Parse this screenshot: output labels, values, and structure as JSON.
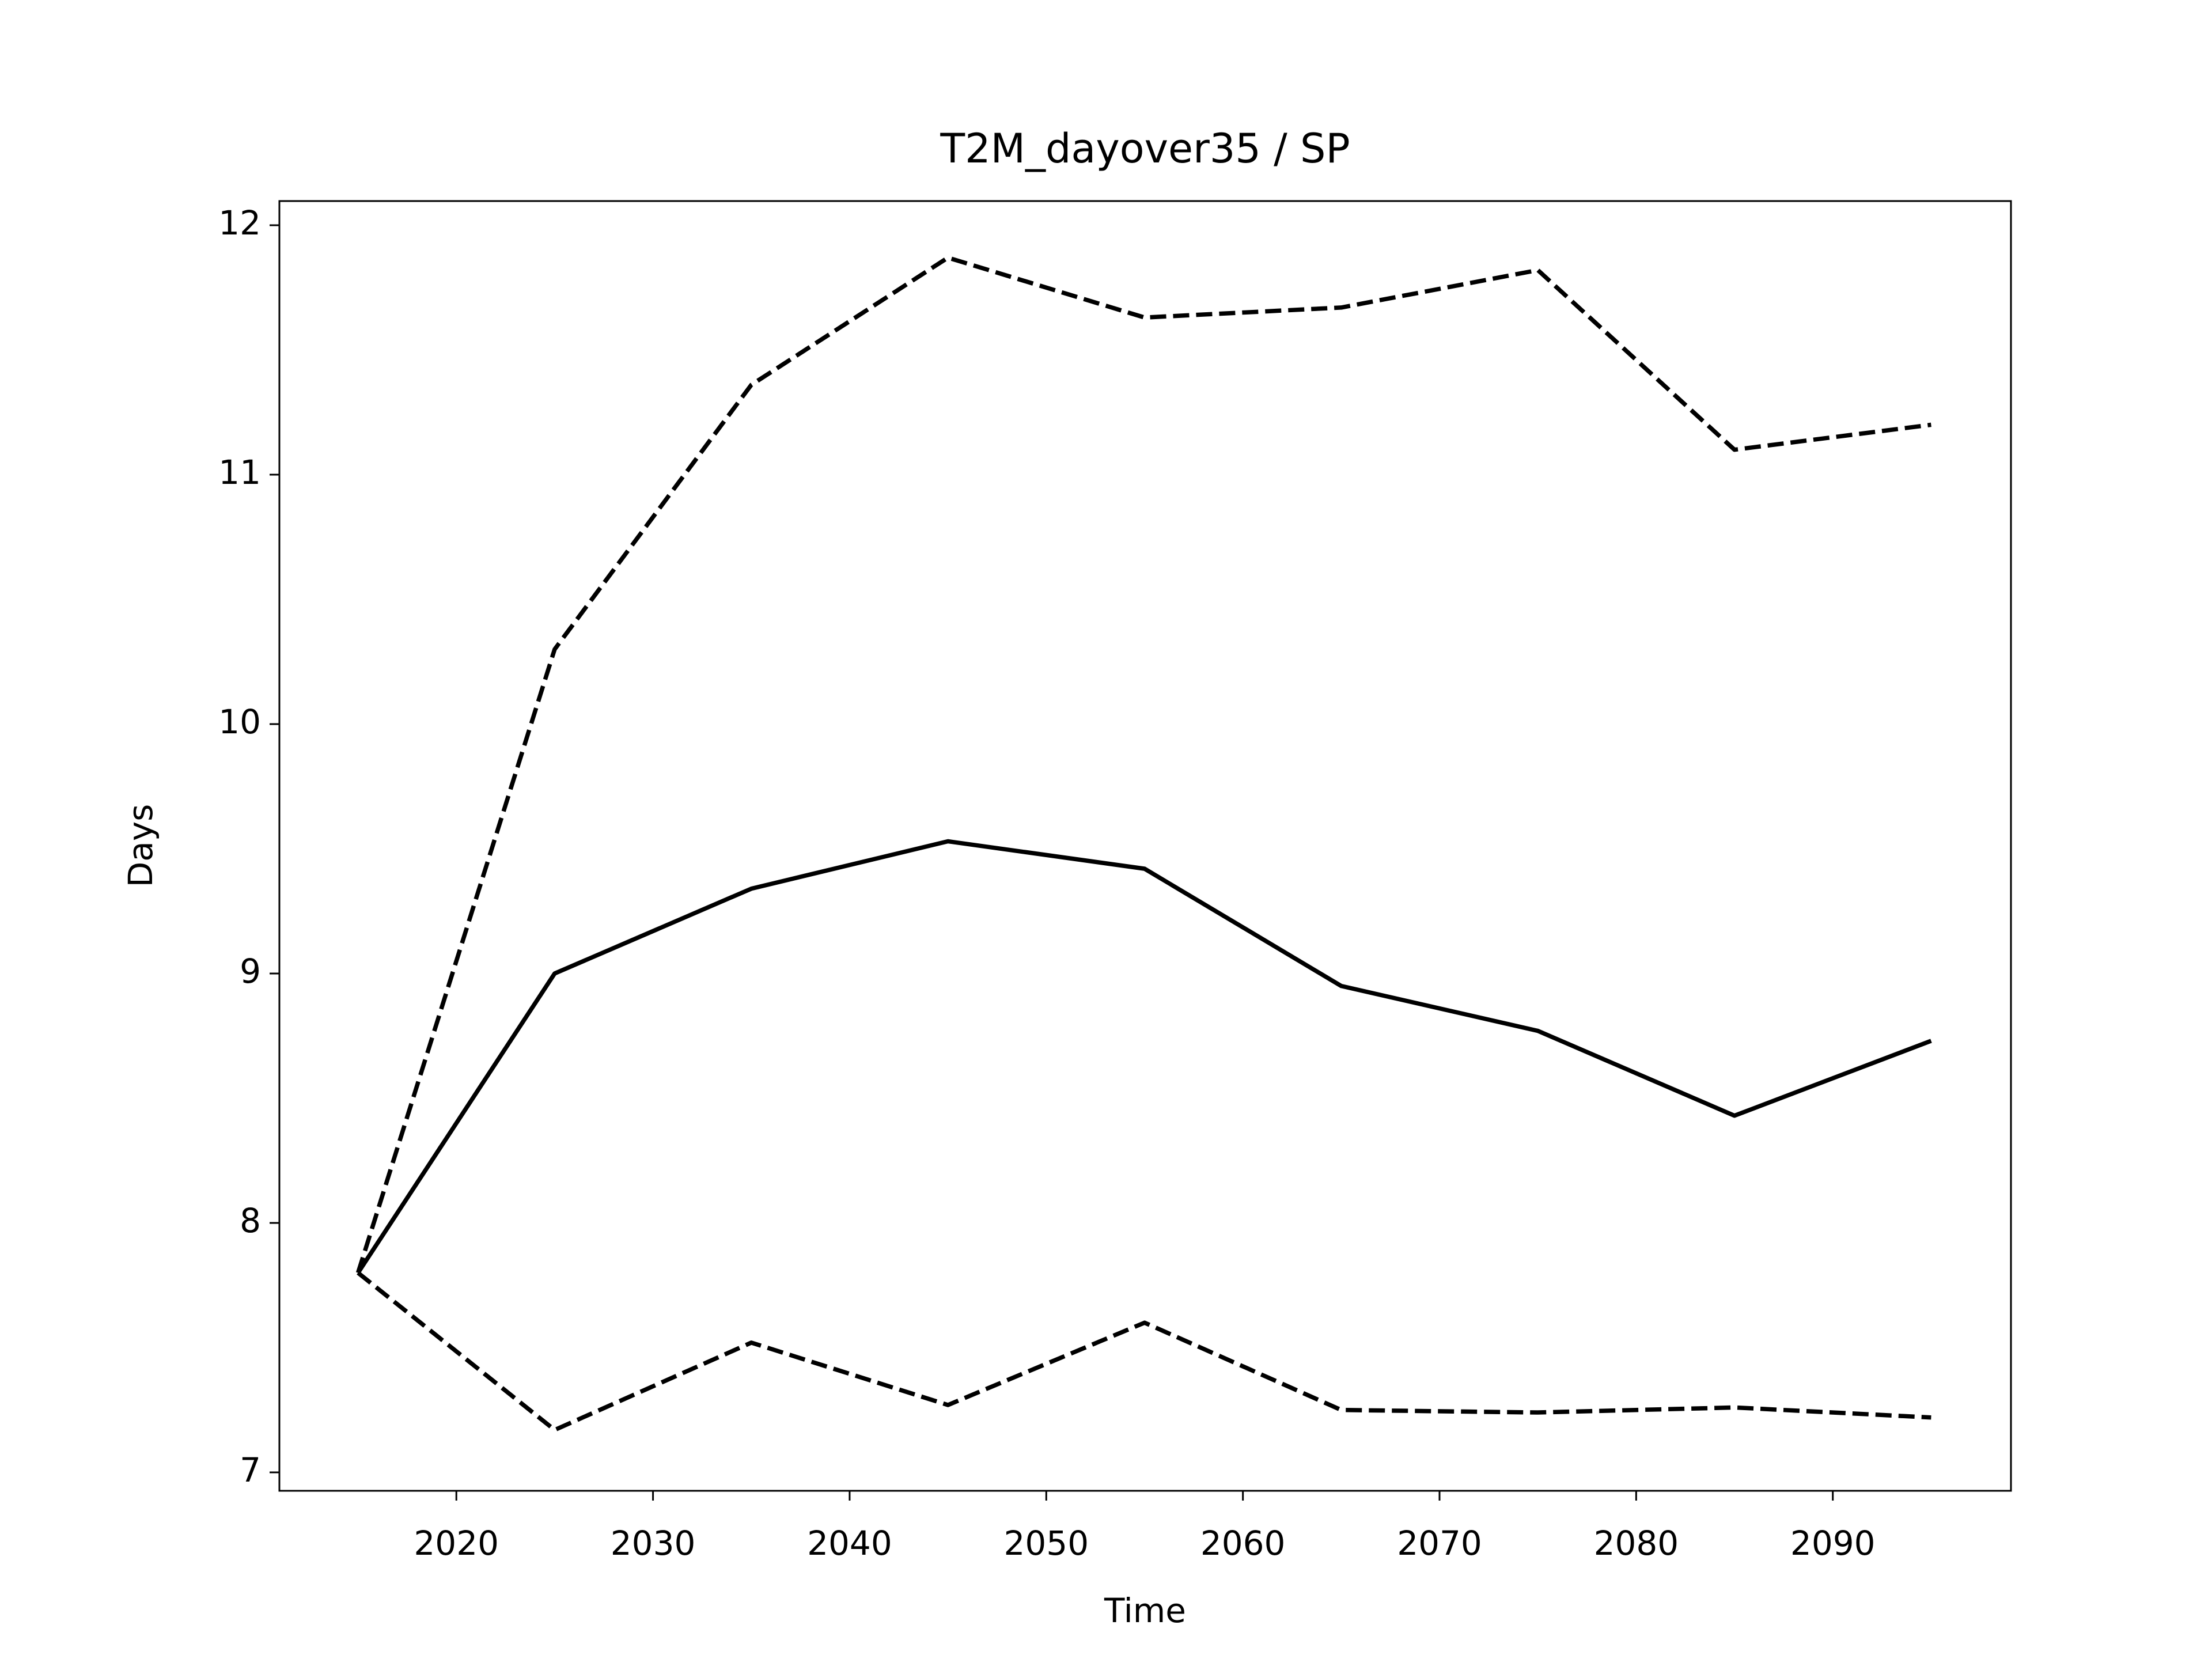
{
  "chart_data": {
    "type": "line",
    "title": "T2M_dayover35 / SP",
    "x_label": "Time",
    "y_label": "Days",
    "x": [
      2015,
      2025,
      2035,
      2045,
      2055,
      2065,
      2075,
      2085,
      2095
    ],
    "series": [
      {
        "color": "#000000",
        "linestyle": "solid",
        "values": [
          7.8,
          9.0,
          9.34,
          9.53,
          9.42,
          8.95,
          8.77,
          8.43,
          8.73
        ]
      },
      {
        "color": "#000000",
        "linestyle": "dashed",
        "values": [
          7.8,
          10.3,
          11.36,
          11.87,
          11.63,
          11.67,
          11.82,
          11.1,
          11.2
        ]
      },
      {
        "color": "#000000",
        "linestyle": "dashed",
        "values": [
          7.8,
          7.17,
          7.52,
          7.27,
          7.6,
          7.25,
          7.24,
          7.26,
          7.22
        ]
      }
    ],
    "xlim": [
      2011,
      2099.06
    ],
    "xticks": [
      2020,
      2030,
      2040,
      2050,
      2060,
      2070,
      2080,
      2090
    ],
    "ylim": [
      6.926,
      12.097
    ],
    "yticks": [
      7,
      8,
      9,
      10,
      11,
      12
    ],
    "grid": false
  }
}
